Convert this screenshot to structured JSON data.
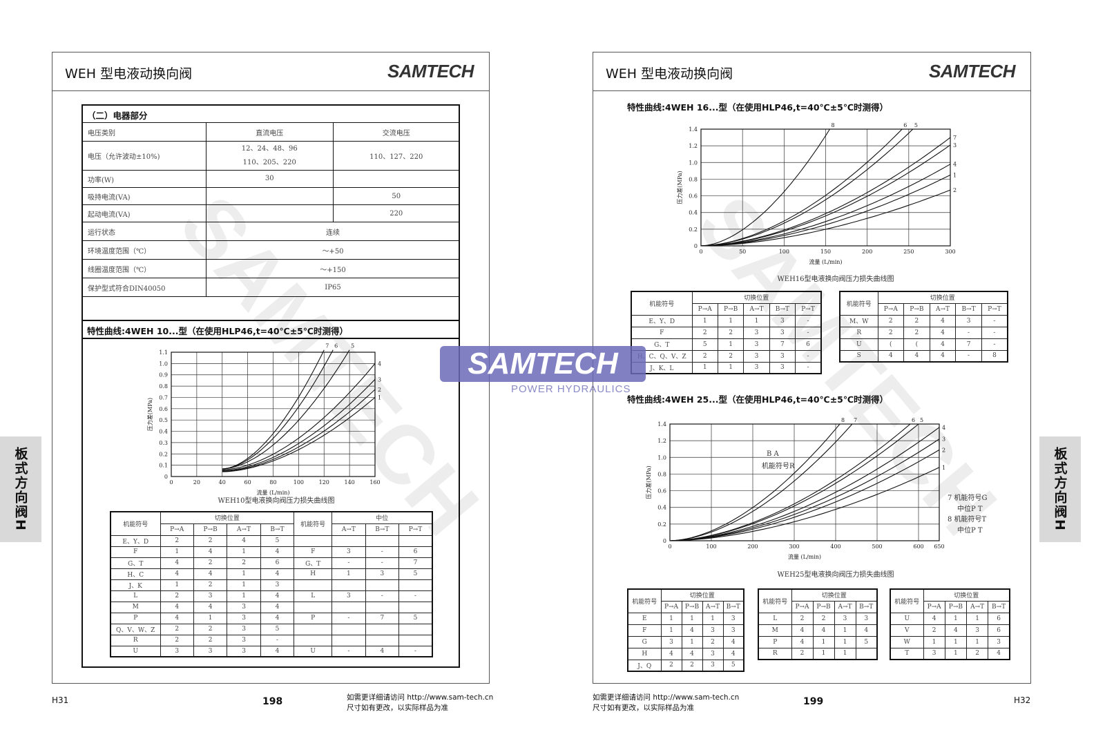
{
  "left": {
    "title": "WEH 型电液动换向阀",
    "logo": "SAMTECH",
    "section": "（二）电器部分",
    "elec": {
      "header": [
        "电压类别",
        "直流电压",
        "交流电压"
      ],
      "rows": [
        [
          "电压（允许波动±10%)",
          "12、24、48、96\n110、205、220",
          "110、127、220"
        ],
        [
          "功率(W)",
          "30",
          ""
        ],
        [
          "吸持电流(VA)",
          "",
          "50"
        ],
        [
          "起动电流(VA)",
          "",
          "220"
        ]
      ],
      "span_rows": [
        [
          "运行状态",
          "连续"
        ],
        [
          "环境温度范围（℃）",
          "～+50"
        ],
        [
          "线圈温度范围（℃）",
          "～+150"
        ],
        [
          "保护型式符合DIN40050",
          "IP65"
        ]
      ]
    },
    "curve_title": "特性曲线:4WEH 10...型（在使用HLP46,t=40℃±5℃时测得）",
    "chart_caption": "WEH10型电液换向阀压力损失曲线图",
    "table": {
      "h1": [
        "机能符号",
        "切换位置",
        "机能符号",
        "中位"
      ],
      "h2": [
        "P→A",
        "P→B",
        "A→T",
        "B→T",
        "A→T",
        "B→T",
        "P→T"
      ],
      "rows": [
        [
          "E、Y、D",
          "2",
          "2",
          "4",
          "5",
          "",
          "",
          "",
          ""
        ],
        [
          "F",
          "1",
          "4",
          "1",
          "4",
          "F",
          "3",
          "-",
          "6"
        ],
        [
          "G、T",
          "4",
          "2",
          "2",
          "6",
          "G、T",
          "-",
          "-",
          "7"
        ],
        [
          "H、C",
          "4",
          "4",
          "1",
          "4",
          "H",
          "1",
          "3",
          "5"
        ],
        [
          "J、K",
          "1",
          "2",
          "1",
          "3",
          "",
          "",
          "",
          ""
        ],
        [
          "L",
          "2",
          "3",
          "1",
          "4",
          "L",
          "3",
          "-",
          "-"
        ],
        [
          "M",
          "4",
          "4",
          "3",
          "4",
          "",
          "",
          "",
          ""
        ],
        [
          "P",
          "4",
          "1",
          "3",
          "4",
          "P",
          "-",
          "7",
          "5"
        ],
        [
          "Q、V、W、Z",
          "2",
          "2",
          "3",
          "5",
          "",
          "",
          "",
          ""
        ],
        [
          "R",
          "2",
          "2",
          "3",
          "-",
          "",
          "",
          "",
          ""
        ],
        [
          "U",
          "3",
          "3",
          "3",
          "4",
          "U",
          "-",
          "4",
          "-"
        ]
      ]
    },
    "footer": {
      "code": "H31",
      "page": "198",
      "note1": "如需更详细请访问 http://www.sam-tech.cn",
      "note2": "尺寸如有更改，以实际样品为准"
    },
    "side_tab": "板式方向阀H"
  },
  "right": {
    "title": "WEH 型电液动换向阀",
    "logo": "SAMTECH",
    "curve_title1": "特性曲线:4WEH 16...型（在使用HLP46,t=40℃±5℃时测得）",
    "chart_caption1": "WEH16型电液换向阀压力损失曲线图",
    "t16a": {
      "h1": [
        "机能符号",
        "切换位置"
      ],
      "h2": [
        "P→A",
        "P→B",
        "A→T",
        "B→T",
        "P→T"
      ],
      "rows": [
        [
          "E、Y、D",
          "1",
          "1",
          "1",
          "3",
          "-"
        ],
        [
          "F",
          "2",
          "2",
          "3",
          "3",
          "-"
        ],
        [
          "G、T",
          "5",
          "1",
          "3",
          "7",
          "6"
        ],
        [
          "H、C、Q、V、Z",
          "2",
          "2",
          "3",
          "3",
          "-"
        ],
        [
          "J、K、L",
          "1",
          "1",
          "3",
          "3",
          "-"
        ]
      ]
    },
    "t16b": {
      "h1": [
        "机能符号",
        "切换位置"
      ],
      "h2": [
        "P→A",
        "P→B",
        "A→T",
        "B→T",
        "P→T"
      ],
      "rows": [
        [
          "M、W",
          "2",
          "2",
          "4",
          "3",
          "-"
        ],
        [
          "R",
          "2",
          "2",
          "4",
          "-",
          "-"
        ],
        [
          "U",
          "(",
          "(",
          "4",
          "7",
          "-"
        ],
        [
          "S",
          "4",
          "4",
          "4",
          "-",
          "8"
        ]
      ]
    },
    "curve_title2": "特性曲线:4WEH 25...型（在使用HLP46,t=40℃±5℃时测得）",
    "chart_caption2": "WEH25型电液换向阀压力损失曲线图",
    "annot_ba": "B  A",
    "annot_r": "机能符号R",
    "legend": [
      "7  机能符号G",
      "中位P  T",
      "8  机能符号T",
      "中位P  T"
    ],
    "t25": [
      {
        "h1": [
          "机能符号",
          "切换位置"
        ],
        "h2": [
          "P→A",
          "P→B",
          "A→T",
          "B→T"
        ],
        "rows": [
          [
            "E",
            "1",
            "1",
            "1",
            "3"
          ],
          [
            "F",
            "1",
            "4",
            "3",
            "3"
          ],
          [
            "G",
            "3",
            "1",
            "2",
            "4"
          ],
          [
            "H",
            "4",
            "4",
            "3",
            "4"
          ],
          [
            "J、Q",
            "2",
            "2",
            "3",
            "5"
          ]
        ]
      },
      {
        "h1": [
          "机能符号",
          "切换位置"
        ],
        "h2": [
          "P→A",
          "P→B",
          "A→T",
          "B→T"
        ],
        "rows": [
          [
            "L",
            "2",
            "2",
            "3",
            "3"
          ],
          [
            "M",
            "4",
            "4",
            "1",
            "4"
          ],
          [
            "P",
            "4",
            "1",
            "1",
            "5"
          ],
          [
            "R",
            "2",
            "1",
            "1",
            ""
          ]
        ]
      },
      {
        "h1": [
          "机能符号",
          "切换位置"
        ],
        "h2": [
          "P→A",
          "P→B",
          "A→T",
          "B→T"
        ],
        "rows": [
          [
            "U",
            "4",
            "1",
            "1",
            "6"
          ],
          [
            "V",
            "2",
            "4",
            "3",
            "6"
          ],
          [
            "W",
            "1",
            "1",
            "1",
            "3"
          ],
          [
            "T",
            "3",
            "1",
            "2",
            "4"
          ]
        ]
      }
    ],
    "footer": {
      "code": "H32",
      "page": "199",
      "note1": "如需更详细请访问 http://www.sam-tech.cn",
      "note2": "尺寸如有更改，以实际样品为准"
    },
    "side_tab": "板式方向阀H"
  },
  "watermark": {
    "brand": "SAMTECH",
    "sub": "POWER HYDRAULICS",
    "color": "#6a6ab8"
  },
  "chart_data": [
    {
      "type": "line",
      "xlabel": "流量 (L/min)",
      "ylabel": "压力差(MPa)",
      "xlim": [
        0,
        160
      ],
      "ylim": [
        0,
        1.1
      ],
      "xticks": [
        0,
        20,
        40,
        60,
        80,
        100,
        120,
        140,
        160
      ],
      "yticks": [
        0,
        0.1,
        0.2,
        0.3,
        0.4,
        0.5,
        0.6,
        0.7,
        0.8,
        0.9,
        1.0,
        1.1
      ],
      "series": [
        {
          "name": "7",
          "x0": 40,
          "end": [
            120,
            1.12
          ]
        },
        {
          "name": "6",
          "x0": 40,
          "end": [
            127,
            1.12
          ]
        },
        {
          "name": "5",
          "x0": 40,
          "end": [
            140,
            1.12
          ]
        },
        {
          "name": "4",
          "x0": 40,
          "end": [
            160,
            1.0
          ]
        },
        {
          "name": "3",
          "x0": 40,
          "end": [
            160,
            0.86
          ]
        },
        {
          "name": "2",
          "x0": 40,
          "end": [
            160,
            0.77
          ]
        },
        {
          "name": "1",
          "x0": 40,
          "end": [
            160,
            0.7
          ]
        }
      ]
    },
    {
      "type": "line",
      "xlabel": "流量 (L/min)",
      "ylabel": "压力差(MPa)",
      "xlim": [
        0,
        300
      ],
      "ylim": [
        0,
        1.4
      ],
      "xticks": [
        0,
        50,
        100,
        150,
        200,
        250,
        300
      ],
      "yticks": [
        0,
        0.2,
        0.4,
        0.6,
        0.8,
        1.0,
        1.2,
        1.4
      ],
      "series": [
        {
          "name": "8",
          "x0": 0,
          "end": [
            155,
            1.4
          ]
        },
        {
          "name": "6",
          "x0": 0,
          "end": [
            242,
            1.4
          ]
        },
        {
          "name": "5",
          "x0": 0,
          "end": [
            255,
            1.4
          ]
        },
        {
          "name": "7",
          "x0": 0,
          "end": [
            300,
            1.3
          ]
        },
        {
          "name": "3",
          "x0": 0,
          "end": [
            300,
            1.21
          ]
        },
        {
          "name": "4",
          "x0": 0,
          "end": [
            300,
            0.98
          ]
        },
        {
          "name": "1",
          "x0": 0,
          "end": [
            300,
            0.85
          ]
        },
        {
          "name": "2",
          "x0": 0,
          "end": [
            300,
            0.67
          ]
        }
      ]
    },
    {
      "type": "line",
      "xlabel": "流量 (L/min)",
      "ylabel": "压力差(MPa)",
      "xlim": [
        0,
        650
      ],
      "ylim": [
        0,
        1.4
      ],
      "xticks": [
        0,
        100,
        200,
        300,
        400,
        500,
        600,
        650
      ],
      "yticks": [
        0,
        0.2,
        0.4,
        0.6,
        0.8,
        1.0,
        1.2,
        1.4
      ],
      "series": [
        {
          "name": "8",
          "x0": 0,
          "end": [
            410,
            1.4
          ]
        },
        {
          "name": "7",
          "x0": 0,
          "end": [
            440,
            1.4
          ]
        },
        {
          "name": "6",
          "x0": 0,
          "end": [
            580,
            1.4
          ]
        },
        {
          "name": "5",
          "x0": 0,
          "end": [
            600,
            1.4
          ]
        },
        {
          "name": "4",
          "x0": 0,
          "end": [
            650,
            1.36
          ]
        },
        {
          "name": "3",
          "x0": 0,
          "end": [
            650,
            1.22
          ]
        },
        {
          "name": "2",
          "x0": 0,
          "end": [
            650,
            1.09
          ]
        },
        {
          "name": "1",
          "x0": 0,
          "end": [
            650,
            0.88
          ]
        }
      ]
    }
  ]
}
